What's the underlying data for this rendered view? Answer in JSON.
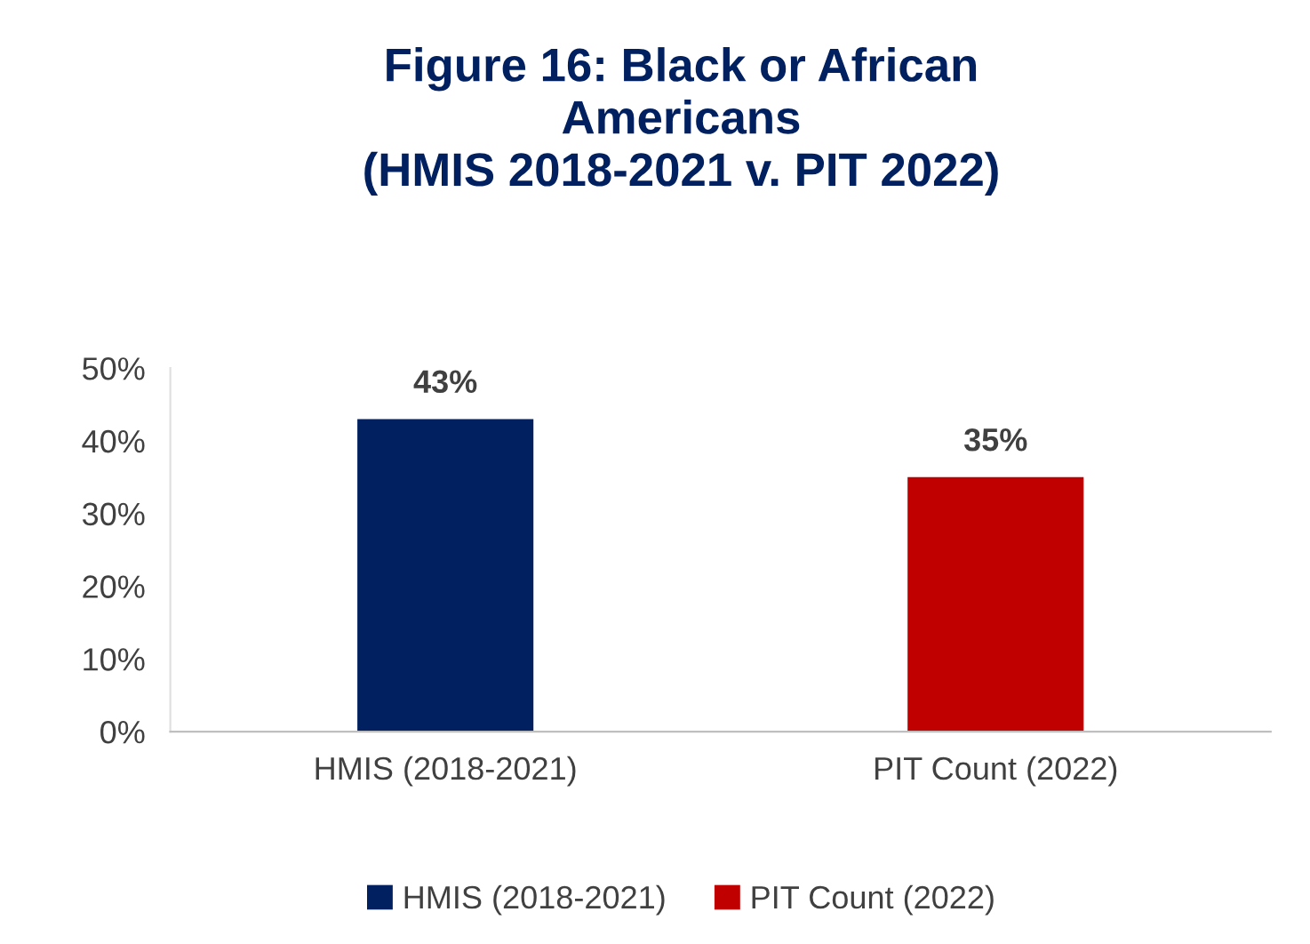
{
  "chart_data": {
    "type": "bar",
    "title": "Figure 16: Black or African\nAmericans\n(HMIS 2018-2021 v. PIT 2022)",
    "categories": [
      "HMIS (2018-2021)",
      "PIT Count (2022)"
    ],
    "series": [
      {
        "name": "HMIS (2018-2021)",
        "color": "#002060",
        "values": [
          43,
          null
        ],
        "value_labels": [
          "43%",
          null
        ]
      },
      {
        "name": "PIT Count (2022)",
        "color": "#c00000",
        "values": [
          null,
          35
        ],
        "value_labels": [
          null,
          "35%"
        ]
      }
    ],
    "ylim": [
      0,
      50
    ],
    "yticks": [
      {
        "value": 0,
        "label": "0%"
      },
      {
        "value": 10,
        "label": "10%"
      },
      {
        "value": 20,
        "label": "20%"
      },
      {
        "value": 30,
        "label": "30%"
      },
      {
        "value": 40,
        "label": "40%"
      },
      {
        "value": 50,
        "label": "50%"
      }
    ],
    "grid": false,
    "legend": "bottom"
  }
}
